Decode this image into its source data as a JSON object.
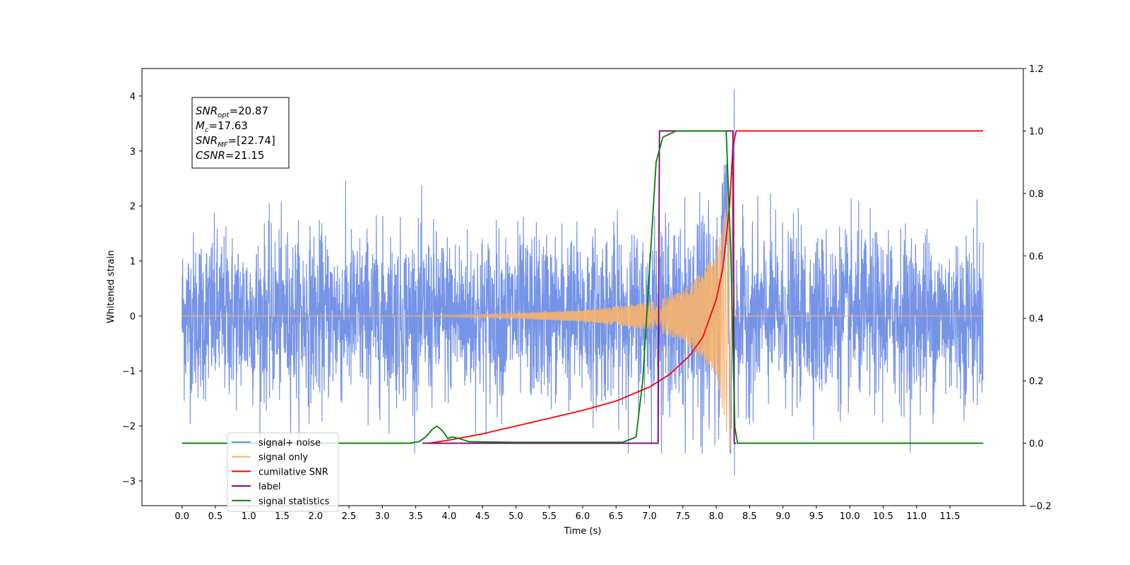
{
  "chart_data": {
    "type": "line",
    "xlabel": "Time (s)",
    "ylabel_left": "Whitened strain",
    "ylabel_right": "",
    "xlim": [
      -0.6,
      12.6
    ],
    "ylim_left": [
      -3.45,
      4.5
    ],
    "ylim_right": [
      -0.2,
      1.2
    ],
    "x_ticks": [
      0.0,
      0.5,
      1.0,
      1.5,
      2.0,
      2.5,
      3.0,
      3.5,
      4.0,
      4.5,
      5.0,
      5.5,
      6.0,
      6.5,
      7.0,
      7.5,
      8.0,
      8.5,
      9.0,
      9.5,
      10.0,
      10.5,
      11.0,
      11.5
    ],
    "x_tick_labels": [
      "0.0",
      "0.5",
      "1.0",
      "1.5",
      "2.0",
      "2.5",
      "3.0",
      "3.5",
      "4.0",
      "4.5",
      "5.0",
      "5.5",
      "6.0",
      "6.5",
      "7.0",
      "7.5",
      "8.0",
      "8.5",
      "9.0",
      "9.5",
      "10.0",
      "10.5",
      "11.0",
      "11.5"
    ],
    "y_left_ticks": [
      -3,
      -2,
      -1,
      0,
      1,
      2,
      3,
      4
    ],
    "y_left_tick_labels": [
      "−3",
      "−2",
      "−1",
      "0",
      "1",
      "2",
      "3",
      "4"
    ],
    "y_right_ticks": [
      -0.2,
      0.0,
      0.2,
      0.4,
      0.6,
      0.8,
      1.0,
      1.2
    ],
    "y_right_tick_labels": [
      "−0.2",
      "0.0",
      "0.2",
      "0.4",
      "0.6",
      "0.8",
      "1.0",
      "1.2"
    ],
    "grid": false,
    "legend_position": "lower-left",
    "series": [
      {
        "name": "signal+ noise",
        "axis": "left",
        "color": "#6f8ee6",
        "description_type": "noise",
        "x_range": [
          0.0,
          12.0
        ],
        "envelope_approx": [
          -2.2,
          2.3
        ],
        "peak": {
          "x": 8.27,
          "y": 4.12
        },
        "trough": {
          "x": 8.27,
          "y": -2.9
        }
      },
      {
        "name": "signal only",
        "axis": "left",
        "color": "#f7b26b",
        "description_type": "chirp",
        "x_range": [
          0.0,
          12.0
        ],
        "merger_x": 8.27,
        "amplitude_profile": [
          [
            0.0,
            0.0
          ],
          [
            3.5,
            0.01
          ],
          [
            4.0,
            0.02
          ],
          [
            5.0,
            0.05
          ],
          [
            6.0,
            0.1
          ],
          [
            7.0,
            0.25
          ],
          [
            7.5,
            0.45
          ],
          [
            8.0,
            1.1
          ],
          [
            8.2,
            2.4
          ],
          [
            8.27,
            2.9
          ]
        ]
      },
      {
        "name": "cumilative SNR",
        "axis": "right",
        "color": "#ff0000",
        "x": [
          3.7,
          4.0,
          4.5,
          5.0,
          5.5,
          6.0,
          6.5,
          7.0,
          7.3,
          7.6,
          7.8,
          8.0,
          8.1,
          8.2,
          8.25,
          8.3,
          12.0
        ],
        "values": [
          0.0,
          0.01,
          0.03,
          0.055,
          0.08,
          0.105,
          0.135,
          0.18,
          0.22,
          0.28,
          0.34,
          0.46,
          0.56,
          0.76,
          0.95,
          1.0,
          1.0
        ]
      },
      {
        "name": "label",
        "axis": "right",
        "color": "#800080",
        "x": [
          3.6,
          7.13,
          7.15,
          8.25,
          8.27,
          8.3
        ],
        "values": [
          0.0,
          0.0,
          1.0,
          1.0,
          0.0,
          0.0
        ]
      },
      {
        "name": "signal statistics",
        "axis": "right",
        "color": "#008000",
        "x": [
          0.0,
          3.4,
          3.55,
          3.65,
          3.75,
          3.82,
          3.9,
          3.98,
          4.05,
          4.15,
          4.3,
          5.0,
          6.6,
          6.8,
          6.9,
          7.0,
          7.1,
          7.2,
          7.4,
          7.6,
          8.15,
          8.22,
          8.28,
          8.32,
          12.0
        ],
        "values": [
          0.0,
          0.0,
          0.005,
          0.02,
          0.045,
          0.055,
          0.04,
          0.015,
          0.02,
          0.015,
          0.005,
          0.003,
          0.003,
          0.02,
          0.2,
          0.55,
          0.9,
          0.98,
          1.0,
          1.0,
          1.0,
          0.6,
          0.05,
          0.0,
          0.0
        ]
      }
    ],
    "annotation": {
      "lines": [
        {
          "symbol": "SNR",
          "sub": "opt",
          "value": "=20.87"
        },
        {
          "symbol": "M",
          "sub": "c",
          "value": "=17.63"
        },
        {
          "symbol": "SNR",
          "sub": "MF",
          "value": "=[22.74]"
        },
        {
          "symbol": "CSNR",
          "sub": "",
          "value": "=21.15"
        }
      ]
    }
  }
}
